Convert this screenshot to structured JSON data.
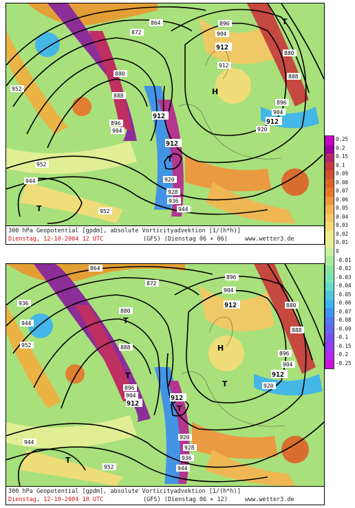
{
  "panel1": {
    "caption_line1": "300 hPa Geopotential [gpdm], absolute Vorticityadvektion [1/(h*h)]",
    "caption_date": "Dienstag, 12-10-2004  12 UTC",
    "caption_model": "(GFS)  (Dienstag 06 + 06)",
    "caption_site": "www.wetter3.de",
    "contour_labels": [
      "864",
      "872",
      "880",
      "888",
      "896",
      "904",
      "912",
      "912",
      "912",
      "920",
      "928",
      "936",
      "944",
      "952",
      "952",
      "952",
      "944",
      "896",
      "904",
      "880",
      "888",
      "896",
      "904",
      "920",
      "912",
      "912"
    ],
    "pressure_centers": [
      "T",
      "T",
      "T",
      "H"
    ]
  },
  "panel2": {
    "caption_line1": "300 hPa Geopotential [gpdm], absolute Vorticityadvektion [1/(h*h)]",
    "caption_date": "Dienstag, 12-10-2004  18 UTC",
    "caption_model": "(GFS)  (Dienstag 06 + 12)",
    "caption_site": "www.wetter3.de",
    "contour_labels": [
      "864",
      "872",
      "880",
      "888",
      "896",
      "904",
      "912",
      "912",
      "912",
      "920",
      "928",
      "936",
      "944",
      "952",
      "944",
      "936",
      "896",
      "904",
      "880",
      "888",
      "896",
      "904",
      "920",
      "912",
      "944",
      "952"
    ],
    "pressure_centers": [
      "T",
      "T",
      "T",
      "T",
      "H",
      "T"
    ]
  },
  "scale": {
    "labels": [
      "0.25",
      "0.2",
      "0.15",
      "0.1",
      "0.09",
      "0.08",
      "0.07",
      "0.06",
      "0.05",
      "0.04",
      "0.03",
      "0.02",
      "0.01",
      "0",
      "-0.01",
      "-0.02",
      "-0.03",
      "-0.04",
      "-0.05",
      "-0.06",
      "-0.07",
      "-0.08",
      "-0.09",
      "-0.1",
      "-0.15",
      "-0.2",
      "-0.25"
    ],
    "colors": [
      "#c800c8",
      "#a000a0",
      "#b4286e",
      "#c83c3c",
      "#d25032",
      "#dc6428",
      "#e6782a",
      "#f0963c",
      "#f5b450",
      "#f5c864",
      "#f5dc78",
      "#f0eb8c",
      "#e6f096",
      "#c8f0a0",
      "#aaeb9b",
      "#8ce6a0",
      "#78e6b4",
      "#64dcc8",
      "#50c8dc",
      "#3cb4f0",
      "#3c96f0",
      "#5078f0",
      "#6464f0",
      "#7850f0",
      "#963cf0",
      "#b428f0",
      "#c814dc"
    ]
  }
}
